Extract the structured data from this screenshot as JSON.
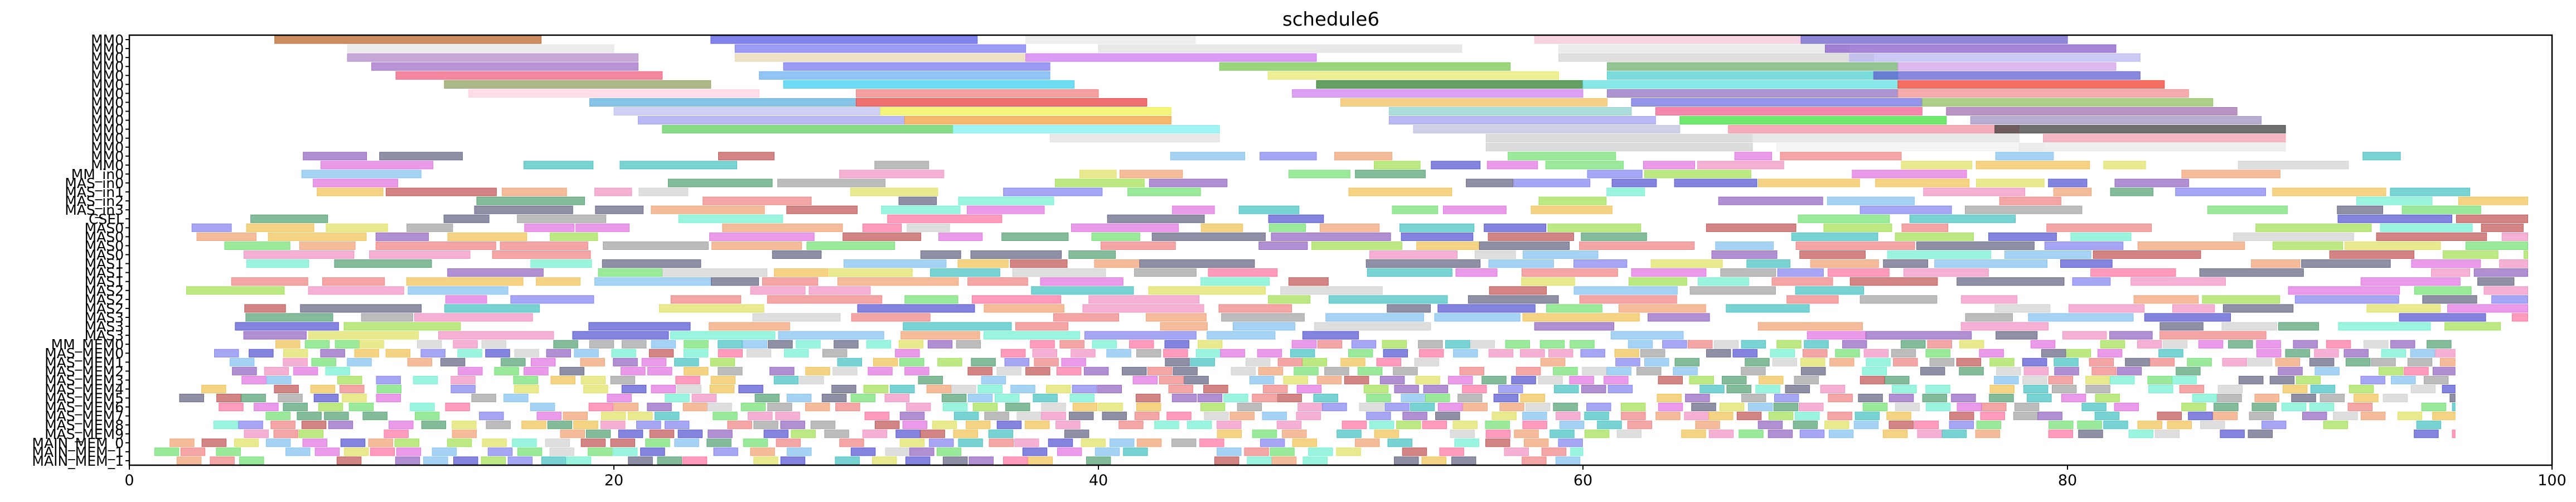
{
  "chart_data": {
    "type": "gantt",
    "title": "schedule6",
    "xlabel": "",
    "ylabel": "",
    "xlim": [
      0,
      100
    ],
    "xticks": [
      0,
      20,
      40,
      60,
      80,
      100
    ],
    "grid": false,
    "rows": [
      "MM0",
      "MM0",
      "MM0",
      "MM0",
      "MM0",
      "MM0",
      "MM0",
      "MM0",
      "MM0",
      "MM0",
      "MM0",
      "MM0",
      "MM0",
      "MM0",
      "MM0",
      "MM_in0",
      "MAS_in0",
      "MAS_in1",
      "MAS_in2",
      "MAS_in3",
      "CSEL",
      "MAS0",
      "MAS0",
      "MAS0",
      "MAS0",
      "MAS1",
      "MAS1",
      "MAS1",
      "MAS2",
      "MAS2",
      "MAS2",
      "MAS3",
      "MAS3",
      "MAS3",
      "MM_MEM0",
      "MAS_MEM0",
      "MAS_MEM1",
      "MAS_MEM2",
      "MAS_MEM3",
      "MAS_MEM4",
      "MAS_MEM5",
      "MAS_MEM6",
      "MAS_MEM7",
      "MAS_MEM8",
      "MAS_MEM9",
      "MAIN_MEM_0",
      "MAIN_MEM_1",
      "MAIN_MEM_1"
    ],
    "note_rows": "rows listed top to bottom as printed on the y axis",
    "seed": 6,
    "spans": [
      {
        "row": 0,
        "tasks": [
          [
            6,
            17,
            "#b8682e"
          ],
          [
            24,
            35,
            "#5a5ae6"
          ],
          [
            37,
            44,
            "#e8e8e8"
          ],
          [
            58,
            69,
            "#f5c6da"
          ],
          [
            69,
            80,
            "#6b5fc8"
          ]
        ]
      },
      {
        "row": 1,
        "tasks": [
          [
            9,
            20,
            "#e6e6e6"
          ],
          [
            25,
            37,
            "#7a7af0"
          ],
          [
            40,
            55,
            "#e0e0e0"
          ],
          [
            59,
            71,
            "#e6e6e6"
          ],
          [
            70,
            82,
            "#8a5cc8"
          ]
        ]
      },
      {
        "row": 2,
        "tasks": [
          [
            9,
            21,
            "#b48ac8"
          ],
          [
            25,
            37,
            "#e8d7b0"
          ],
          [
            37,
            49,
            "#cc7af0"
          ],
          [
            59,
            72,
            "#d4d4d4"
          ],
          [
            71,
            83,
            "#b8b8f0"
          ]
        ]
      },
      {
        "row": 3,
        "tasks": [
          [
            10,
            21,
            "#a070c8"
          ],
          [
            27,
            38,
            "#7a7af0"
          ],
          [
            45,
            57,
            "#7ac850"
          ],
          [
            61,
            73,
            "#70b070"
          ],
          [
            73,
            82,
            "#d0a0e8"
          ]
        ]
      },
      {
        "row": 4,
        "tasks": [
          [
            11,
            22,
            "#f06080"
          ],
          [
            26,
            38,
            "#6ab0f0"
          ],
          [
            47,
            59,
            "#e8e870"
          ],
          [
            61,
            73,
            "#50d0d0"
          ],
          [
            72,
            83,
            "#6060d0"
          ]
        ]
      },
      {
        "row": 5,
        "tasks": [
          [
            13,
            24,
            "#90a060"
          ],
          [
            27,
            39,
            "#40d0f0"
          ],
          [
            49,
            60,
            "#308030"
          ],
          [
            60,
            73,
            "#60e0e0"
          ],
          [
            73,
            84,
            "#f04030"
          ]
        ]
      },
      {
        "row": 6,
        "tasks": [
          [
            14,
            26,
            "#ffd0e0"
          ],
          [
            30,
            40,
            "#f08080"
          ],
          [
            48,
            60,
            "#d080f0"
          ],
          [
            61,
            73,
            "#9070c0"
          ],
          [
            73,
            85,
            "#f09090"
          ]
        ]
      },
      {
        "row": 7,
        "tasks": [
          [
            19,
            30,
            "#60b0e0"
          ],
          [
            30,
            42,
            "#e84040"
          ],
          [
            50,
            61,
            "#f0c060"
          ],
          [
            62,
            74,
            "#7070e0"
          ],
          [
            74,
            86,
            "#90c060"
          ]
        ]
      },
      {
        "row": 8,
        "tasks": [
          [
            20,
            31,
            "#c0c0f0"
          ],
          [
            31,
            43,
            "#f0f050"
          ],
          [
            52,
            62,
            "#90d0d0"
          ],
          [
            63,
            74,
            "#f06090"
          ],
          [
            75,
            87,
            "#a070b0"
          ]
        ]
      },
      {
        "row": 9,
        "tasks": [
          [
            21,
            32,
            "#a0a0f0"
          ],
          [
            32,
            43,
            "#f0a040"
          ],
          [
            52,
            63,
            "#a0a0f0"
          ],
          [
            64,
            75,
            "#40e040"
          ],
          [
            76,
            88,
            "#a090c0"
          ]
        ]
      },
      {
        "row": 10,
        "tasks": [
          [
            22,
            34,
            "#60d060"
          ],
          [
            34,
            45,
            "#80f0f0"
          ],
          [
            53,
            64,
            "#c0c0e0"
          ],
          [
            66,
            78,
            "#f090a0"
          ],
          [
            77,
            89,
            "#404040"
          ]
        ]
      },
      {
        "row": 11,
        "tasks": [
          [
            38,
            45,
            "#e0e0e0"
          ],
          [
            56,
            67,
            "#d0d0d0"
          ],
          [
            67,
            78,
            "#e0e0e0"
          ],
          [
            79,
            89,
            "#f0a0b0"
          ]
        ]
      },
      {
        "row": 12,
        "tasks": [
          [
            56,
            67,
            "#d0d0d0"
          ],
          [
            68,
            79,
            "#f0f0f0"
          ],
          [
            78,
            89,
            "#e8e8e8"
          ]
        ]
      }
    ]
  }
}
